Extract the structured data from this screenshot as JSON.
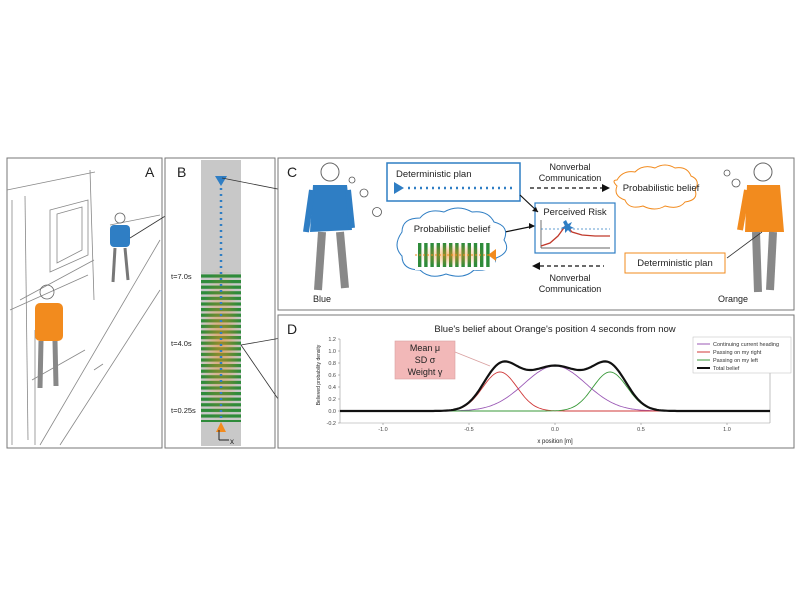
{
  "panels": {
    "a": {
      "label": "A"
    },
    "b": {
      "label": "B",
      "time_labels": [
        "t=7.0s",
        "t=4.0s",
        "t=0.25s"
      ],
      "axis_label": "x"
    },
    "c": {
      "label": "C",
      "blue_name": "Blue",
      "orange_name": "Orange",
      "blue_plan": "Deterministic plan",
      "orange_belief": "Probabilistic belief",
      "blue_belief": "Probabilistic belief",
      "orange_plan": "Deterministic plan",
      "risk": "Perceived Risk",
      "comm_top_1": "Nonverbal",
      "comm_top_2": "Communication",
      "comm_bottom_1": "Nonverbal",
      "comm_bottom_2": "Communication"
    },
    "d": {
      "label": "D"
    }
  },
  "colors": {
    "blue": "#2f7ec4",
    "orange": "#f28b1e",
    "purple": "#9b59b6",
    "red": "#d03a3a",
    "green": "#3a9a3a",
    "total": "#111111"
  },
  "chart_data": {
    "type": "line",
    "title": "Blue's belief about Orange's position 4 seconds from now",
    "xlabel": "x position [m]",
    "ylabel": "Believed probability density",
    "xlim": [
      -1.25,
      1.25
    ],
    "ylim": [
      -0.2,
      1.2
    ],
    "xticks": [
      -1.0,
      -0.5,
      0.0,
      0.5,
      1.0
    ],
    "yticks": [
      -0.2,
      0.0,
      0.2,
      0.4,
      0.6,
      0.8,
      1.0,
      1.2
    ],
    "legend_position": "top-right",
    "annotation": [
      "Mean μ",
      "SD σ",
      "Weight γ"
    ],
    "series": [
      {
        "name": "Continuing current heading",
        "color": "#9b59b6",
        "mean": 0.0,
        "sd": 0.18,
        "peak": 0.75
      },
      {
        "name": "Passing on my right",
        "color": "#d03a3a",
        "mean": -0.32,
        "sd": 0.1,
        "peak": 0.65
      },
      {
        "name": "Passing on my left",
        "color": "#3a9a3a",
        "mean": 0.32,
        "sd": 0.1,
        "peak": 0.65
      },
      {
        "name": "Total belief",
        "color": "#111111",
        "type": "sum"
      }
    ]
  }
}
